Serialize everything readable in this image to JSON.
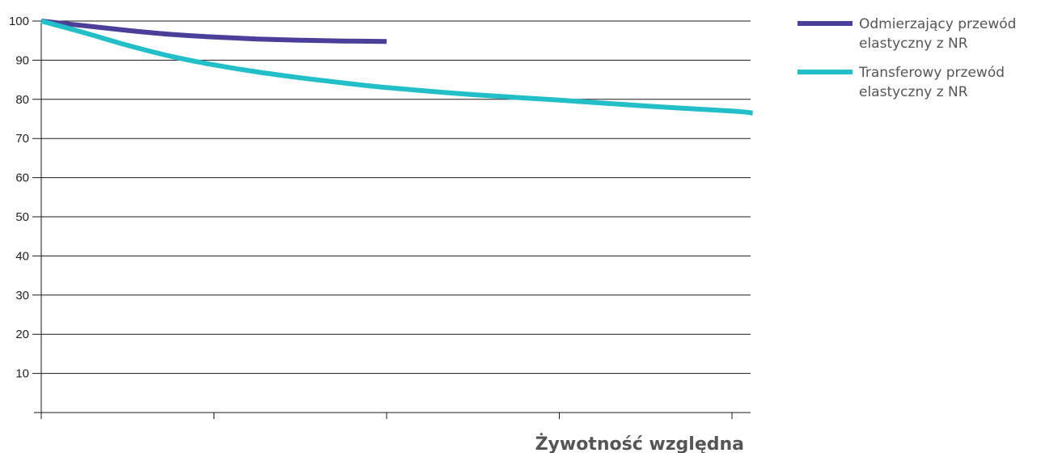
{
  "chart_data": {
    "type": "line",
    "title": "",
    "xlabel": "Żywotność względna",
    "ylabel": "",
    "xlim": [
      0,
      4
    ],
    "ylim": [
      0,
      100
    ],
    "yticks": [
      10,
      20,
      30,
      40,
      50,
      60,
      70,
      80,
      90,
      100
    ],
    "ytick_labels": [
      "10",
      "20",
      "30",
      "40",
      "50",
      "60",
      "70",
      "80",
      "90",
      "100"
    ],
    "xticks": [
      0,
      1,
      2,
      3,
      4
    ],
    "grid": true,
    "legend_position": "right",
    "series": [
      {
        "name": "Odmierzający przewód elastyczny z NR",
        "color": "#4b3f9a",
        "x": [
          0,
          0.25,
          0.5,
          0.75,
          1.0,
          1.25,
          1.5,
          1.75,
          2.0
        ],
        "y": [
          100,
          98.8,
          97.6,
          96.6,
          95.9,
          95.4,
          95.1,
          94.9,
          94.8
        ]
      },
      {
        "name": "Transferowy przewód elastyczny z NR",
        "color": "#22bfc9",
        "x": [
          0,
          0.25,
          0.5,
          0.75,
          1.0,
          1.25,
          1.5,
          1.75,
          2.0,
          2.5,
          3.0,
          3.5,
          4.0,
          4.12
        ],
        "y": [
          100,
          97.0,
          93.8,
          91.0,
          88.8,
          87.0,
          85.5,
          84.2,
          83.0,
          81.2,
          79.8,
          78.3,
          77.0,
          76.5
        ]
      }
    ]
  }
}
